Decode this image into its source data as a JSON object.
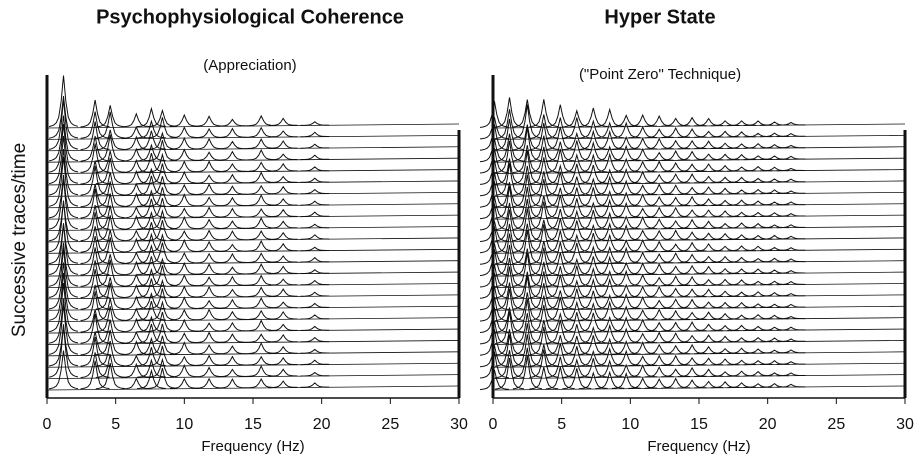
{
  "chart_data": [
    {
      "type": "waterfall",
      "title": "Psychophysiological Coherence",
      "subtitle": "(Appreciation)",
      "xlabel": "Frequency (Hz)",
      "ylabel": "Successive traces/time",
      "xlim": [
        0,
        30
      ],
      "xticks": [
        0,
        5,
        10,
        15,
        20,
        25,
        30
      ],
      "color": "#111111",
      "x": [
        1.2,
        3.5,
        4.6,
        6.5,
        7.6,
        8.4,
        10.0,
        11.8,
        13.5,
        15.6,
        17.2,
        19.5
      ],
      "values": [
        70,
        40,
        36,
        18,
        26,
        28,
        16,
        14,
        12,
        14,
        10,
        6
      ]
    },
    {
      "type": "waterfall",
      "title": "Hyper State",
      "subtitle": "(\"Point Zero\" Technique)",
      "xlabel": "Frequency (Hz)",
      "xlim": [
        0,
        30
      ],
      "xticks": [
        0,
        5,
        10,
        15,
        20,
        25,
        30
      ],
      "color": "#111111",
      "x": [
        0.1,
        1.2,
        2.5,
        3.7,
        4.9,
        6.1,
        7.3,
        8.5,
        9.7,
        10.9,
        12.1,
        13.3,
        14.5,
        15.7,
        16.9,
        18.1,
        19.3,
        20.5,
        21.7
      ],
      "values": [
        36,
        44,
        46,
        38,
        32,
        28,
        26,
        24,
        20,
        16,
        14,
        13,
        12,
        10,
        8,
        7,
        6,
        5,
        4
      ]
    }
  ]
}
